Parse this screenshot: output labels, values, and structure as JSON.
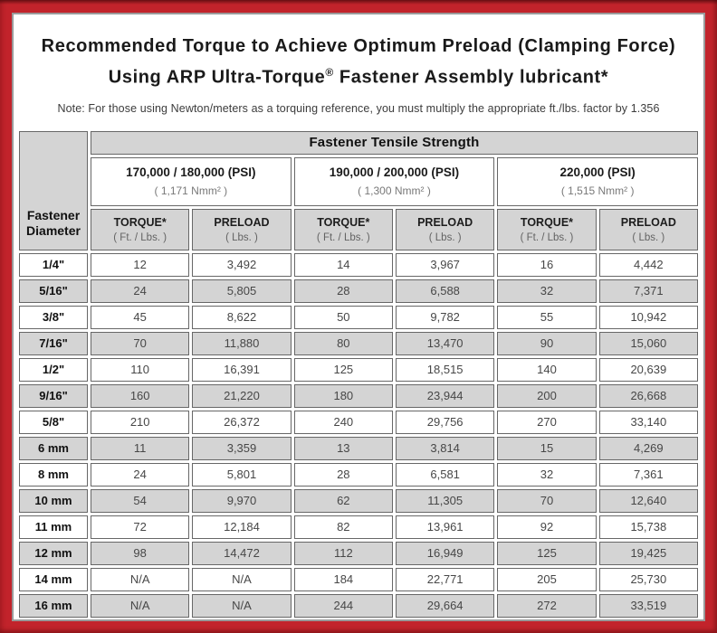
{
  "title": {
    "line1": "Recommended Torque to Achieve Optimum Preload (Clamping Force)",
    "line2_prefix": "Using ARP Ultra-Torque",
    "line2_sup": "®",
    "line2_suffix": " Fastener Assembly lubricant*"
  },
  "note": "Note: For those using Newton/meters as a torquing reference, you must multiply the appropriate ft./lbs. factor by 1.356",
  "table": {
    "corner": {
      "line1": "Fastener",
      "line2": "Diameter"
    },
    "tensile_header": "Fastener Tensile Strength",
    "strength_groups": [
      {
        "psi": "170,000 / 180,000 (PSI)",
        "nmm": "( 1,171 Nmm² )"
      },
      {
        "psi": "190,000 / 200,000 (PSI)",
        "nmm": "( 1,300 Nmm² )"
      },
      {
        "psi": "220,000 (PSI)",
        "nmm": "( 1,515 Nmm² )"
      }
    ],
    "sub_headers": {
      "torque": "TORQUE*",
      "torque_unit": "( Ft. / Lbs. )",
      "preload": "PRELOAD",
      "preload_unit": "( Lbs. )"
    },
    "rows": [
      {
        "diameter": "1/4\"",
        "values": [
          "12",
          "3,492",
          "14",
          "3,967",
          "16",
          "4,442"
        ]
      },
      {
        "diameter": "5/16\"",
        "values": [
          "24",
          "5,805",
          "28",
          "6,588",
          "32",
          "7,371"
        ]
      },
      {
        "diameter": "3/8\"",
        "values": [
          "45",
          "8,622",
          "50",
          "9,782",
          "55",
          "10,942"
        ]
      },
      {
        "diameter": "7/16\"",
        "values": [
          "70",
          "11,880",
          "80",
          "13,470",
          "90",
          "15,060"
        ]
      },
      {
        "diameter": "1/2\"",
        "values": [
          "110",
          "16,391",
          "125",
          "18,515",
          "140",
          "20,639"
        ]
      },
      {
        "diameter": "9/16\"",
        "values": [
          "160",
          "21,220",
          "180",
          "23,944",
          "200",
          "26,668"
        ]
      },
      {
        "diameter": "5/8\"",
        "values": [
          "210",
          "26,372",
          "240",
          "29,756",
          "270",
          "33,140"
        ]
      },
      {
        "diameter": "6 mm",
        "values": [
          "11",
          "3,359",
          "13",
          "3,814",
          "15",
          "4,269"
        ]
      },
      {
        "diameter": "8 mm",
        "values": [
          "24",
          "5,801",
          "28",
          "6,581",
          "32",
          "7,361"
        ]
      },
      {
        "diameter": "10 mm",
        "values": [
          "54",
          "9,970",
          "62",
          "11,305",
          "70",
          "12,640"
        ]
      },
      {
        "diameter": "11 mm",
        "values": [
          "72",
          "12,184",
          "82",
          "13,961",
          "92",
          "15,738"
        ]
      },
      {
        "diameter": "12 mm",
        "values": [
          "98",
          "14,472",
          "112",
          "16,949",
          "125",
          "19,425"
        ]
      },
      {
        "diameter": "14 mm",
        "values": [
          "N/A",
          "N/A",
          "184",
          "22,771",
          "205",
          "25,730"
        ]
      },
      {
        "diameter": "16 mm",
        "values": [
          "N/A",
          "N/A",
          "244",
          "29,664",
          "272",
          "33,519"
        ]
      }
    ]
  },
  "colors": {
    "frame_red": "#c2232b",
    "frame_edge_dark": "#6e1216",
    "cell_gray": "#d4d4d4",
    "cell_border": "#676767",
    "panel_border": "#9a9a9a"
  }
}
